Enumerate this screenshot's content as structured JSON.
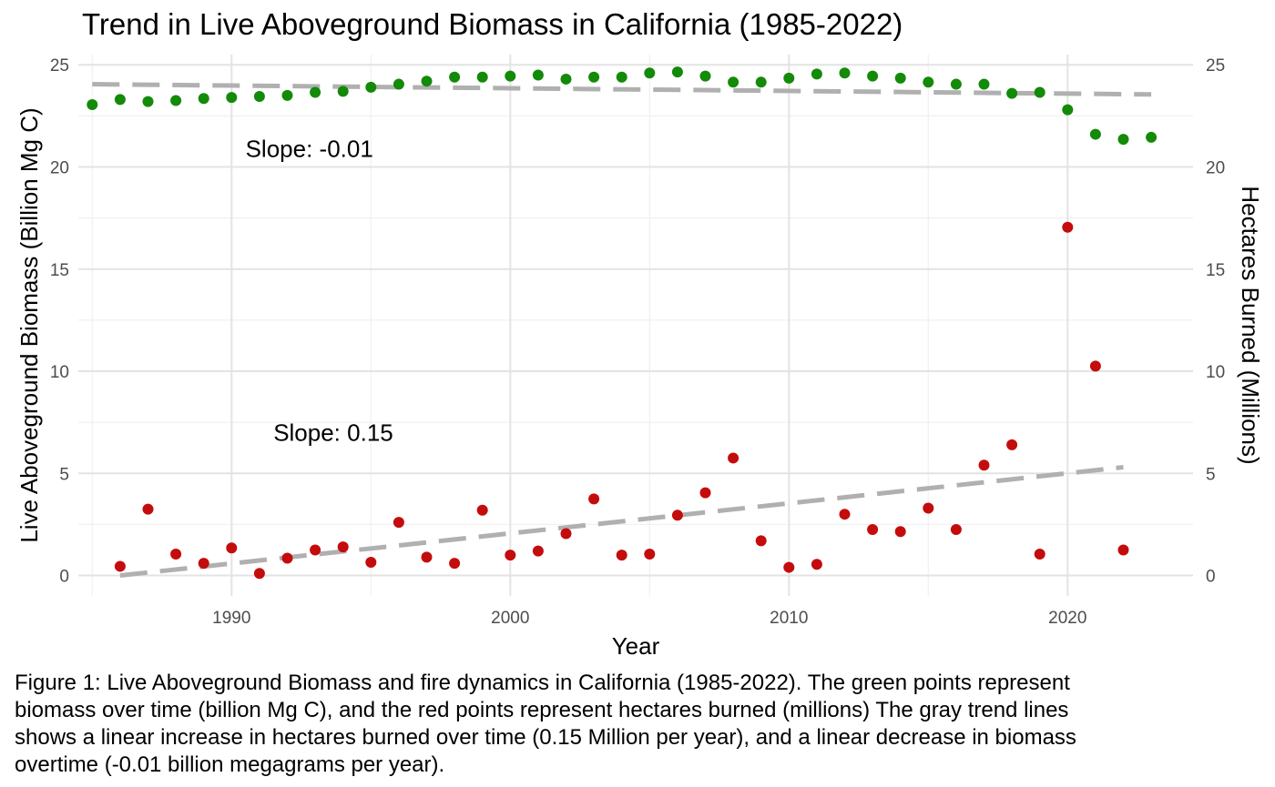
{
  "chart_data": {
    "type": "scatter",
    "title": "Trend in Live Aboveground Biomass in California (1985-2022)",
    "xlabel": "Year",
    "ylabel": "Live Aboveground Biomass (Billion Mg C)",
    "ylabel_right": "Hectares Burned (Millions)",
    "xlim": [
      1984.5,
      2024.5
    ],
    "ylim": [
      -1,
      25.5
    ],
    "x_ticks": [
      1990,
      2000,
      2010,
      2020
    ],
    "y_ticks": [
      0,
      5,
      10,
      15,
      20,
      25
    ],
    "y_ticks_right": [
      0,
      5,
      10,
      15,
      20,
      25
    ],
    "grid": true,
    "series": [
      {
        "color": "#138a08",
        "x": [
          1985,
          1986,
          1987,
          1988,
          1989,
          1990,
          1991,
          1992,
          1993,
          1994,
          1995,
          1996,
          1997,
          1998,
          1999,
          2000,
          2001,
          2002,
          2003,
          2004,
          2005,
          2006,
          2007,
          2008,
          2009,
          2010,
          2011,
          2012,
          2013,
          2014,
          2015,
          2016,
          2017,
          2018,
          2019,
          2020,
          2021,
          2022,
          2023
        ],
        "y": [
          23.05,
          23.3,
          23.2,
          23.25,
          23.35,
          23.4,
          23.45,
          23.5,
          23.65,
          23.7,
          23.9,
          24.05,
          24.2,
          24.4,
          24.4,
          24.45,
          24.5,
          24.3,
          24.4,
          24.4,
          24.6,
          24.65,
          24.45,
          24.15,
          24.15,
          24.35,
          24.55,
          24.6,
          24.45,
          24.35,
          24.15,
          24.05,
          24.05,
          23.6,
          23.65,
          22.8,
          21.6,
          21.35,
          21.45
        ]
      },
      {
        "color": "#c40c0c",
        "x": [
          1986,
          1987,
          1988,
          1989,
          1990,
          1991,
          1992,
          1993,
          1994,
          1995,
          1996,
          1997,
          1998,
          1999,
          2000,
          2001,
          2002,
          2003,
          2004,
          2005,
          2006,
          2007,
          2008,
          2009,
          2010,
          2011,
          2012,
          2013,
          2014,
          2015,
          2016,
          2017,
          2018,
          2019,
          2020,
          2021,
          2022
        ],
        "y": [
          0.45,
          3.25,
          1.05,
          0.6,
          1.35,
          0.1,
          0.85,
          1.25,
          1.4,
          0.65,
          2.6,
          0.9,
          0.6,
          3.2,
          1.0,
          1.2,
          2.05,
          3.75,
          1.0,
          1.05,
          2.95,
          4.05,
          5.75,
          1.7,
          0.4,
          0.55,
          3.0,
          2.25,
          2.15,
          3.3,
          2.25,
          5.4,
          6.4,
          1.05,
          17.05,
          10.25,
          1.25
        ]
      }
    ],
    "trend_lines": [
      {
        "x": [
          1985,
          2023
        ],
        "y": [
          24.05,
          23.55
        ],
        "color": "#b0b0b0",
        "style": "dashed"
      },
      {
        "x": [
          1986,
          2022
        ],
        "y": [
          0.0,
          5.3
        ],
        "color": "#b0b0b0",
        "style": "dashed"
      }
    ],
    "annotations": [
      {
        "text": "Slope: -0.01",
        "x": 1990.5,
        "y": 20.5
      },
      {
        "text": "Slope: 0.15",
        "x": 1991.5,
        "y": 6.6
      }
    ]
  },
  "caption": "Figure 1: Live Aboveground Biomass and fire dynamics in California (1985-2022). The green points represent\n biomass over time (billion Mg C), and the red points represent hectares burned (millions) The gray trend lines\n shows a linear increase in hectares burned over time (0.15 Million per year), and a linear decrease in biomass\n overtime (-0.01 billion megagrams per year)."
}
